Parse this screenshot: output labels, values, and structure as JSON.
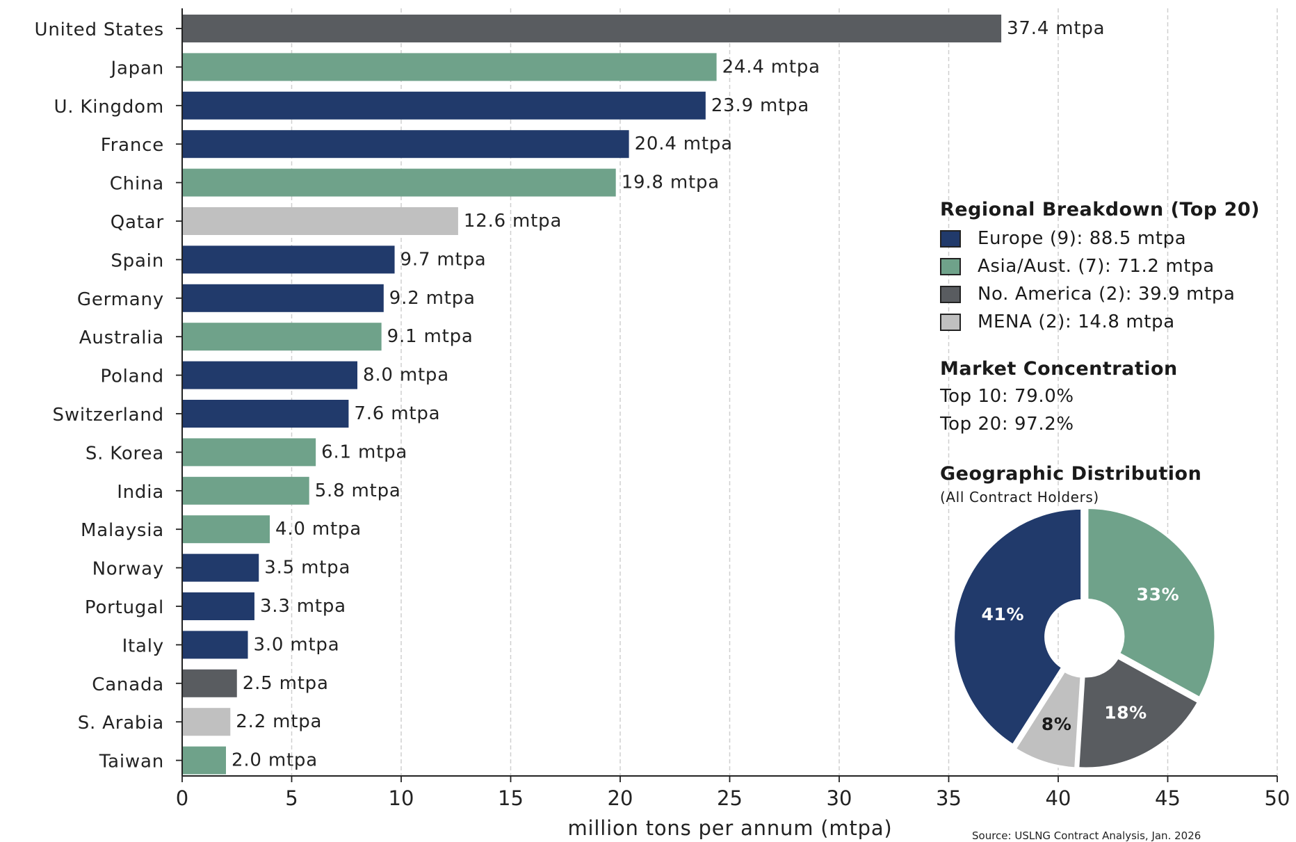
{
  "chart_data": [
    {
      "type": "bar",
      "orientation": "horizontal",
      "categories": [
        "United States",
        "Japan",
        "U. Kingdom",
        "France",
        "China",
        "Qatar",
        "Spain",
        "Germany",
        "Australia",
        "Poland",
        "Switzerland",
        "S. Korea",
        "India",
        "Malaysia",
        "Norway",
        "Portugal",
        "Italy",
        "Canada",
        "S. Arabia",
        "Taiwan"
      ],
      "values": [
        37.4,
        24.4,
        23.9,
        20.4,
        19.8,
        12.6,
        9.7,
        9.2,
        9.1,
        8.0,
        7.6,
        6.1,
        5.8,
        4.0,
        3.5,
        3.3,
        3.0,
        2.5,
        2.2,
        2.0
      ],
      "value_labels": [
        "37.4 mtpa",
        "24.4 mtpa",
        "23.9 mtpa",
        "20.4 mtpa",
        "19.8 mtpa",
        "12.6 mtpa",
        "9.7 mtpa",
        "9.2 mtpa",
        "9.1 mtpa",
        "8.0 mtpa",
        "7.6 mtpa",
        "6.1 mtpa",
        "5.8 mtpa",
        "4.0 mtpa",
        "3.5 mtpa",
        "3.3 mtpa",
        "3.0 mtpa",
        "2.5 mtpa",
        "2.2 mtpa",
        "2.0 mtpa"
      ],
      "regions": [
        "No. America",
        "Asia/Aust.",
        "Europe",
        "Europe",
        "Asia/Aust.",
        "MENA",
        "Europe",
        "Europe",
        "Asia/Aust.",
        "Europe",
        "Europe",
        "Asia/Aust.",
        "Asia/Aust.",
        "Asia/Aust.",
        "Europe",
        "Europe",
        "Europe",
        "No. America",
        "MENA",
        "Asia/Aust."
      ],
      "xlabel": "million tons per annum (mtpa)",
      "xlim": [
        0,
        50
      ],
      "xticks": [
        0,
        5,
        10,
        15,
        20,
        25,
        30,
        35,
        40,
        45,
        50
      ],
      "grid": "vertical dashed"
    },
    {
      "type": "pie",
      "style": "donut",
      "labels": [
        "Europe",
        "Asia/Aust.",
        "No. America",
        "MENA"
      ],
      "values": [
        41,
        33,
        18,
        8
      ],
      "value_labels": [
        "41%",
        "33%",
        "18%",
        "8%"
      ]
    }
  ],
  "colors": {
    "Europe": "#213a6b",
    "Asia/Aust.": "#6fa28a",
    "No. America": "#595c60",
    "MENA": "#c0c0c0"
  },
  "side_panel": {
    "regional_title": "Regional Breakdown (Top 20)",
    "legend": [
      {
        "region": "Europe",
        "label": "Europe (9): 88.5 mtpa"
      },
      {
        "region": "Asia/Aust.",
        "label": "Asia/Aust. (7): 71.2 mtpa"
      },
      {
        "region": "No. America",
        "label": "No. America (2): 39.9 mtpa"
      },
      {
        "region": "MENA",
        "label": "MENA (2): 14.8 mtpa"
      }
    ],
    "concentration_title": "Market Concentration",
    "top10": "Top 10: 79.0%",
    "top20": "Top 20: 97.2%",
    "geo_title": "Geographic Distribution",
    "geo_subtitle": "(All Contract Holders)"
  },
  "source": "Source: USLNG Contract Analysis, Jan. 2026"
}
